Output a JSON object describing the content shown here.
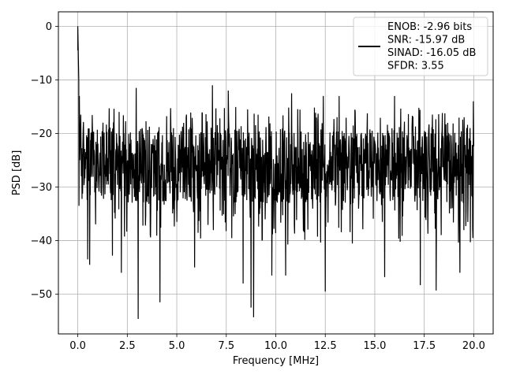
{
  "chart_data": {
    "type": "line",
    "xlabel": "Frequency [MHz]",
    "ylabel": "PSD [dB]",
    "xlim": [
      -0.98,
      20.98
    ],
    "ylim": [
      -57.4,
      2.7
    ],
    "xticks": [
      0.0,
      2.5,
      5.0,
      7.5,
      10.0,
      12.5,
      15.0,
      17.5,
      20.0
    ],
    "xtick_labels": [
      "0.0",
      "2.5",
      "5.0",
      "7.5",
      "10.0",
      "12.5",
      "15.0",
      "17.5",
      "20.0"
    ],
    "yticks": [
      0,
      -10,
      -20,
      -30,
      -40,
      -50
    ],
    "ytick_labels": [
      "0",
      "−10",
      "−20",
      "−30",
      "−40",
      "−50"
    ],
    "grid": true,
    "legend_position": "top-right",
    "legend_lines": [
      "ENOB: -2.96 bits",
      "SNR: -15.97 dB",
      "SINAD: -16.05 dB",
      "SFDR: 3.55"
    ],
    "series": [
      {
        "color": "#000000",
        "x_start": 0.0,
        "x_end": 20.0,
        "peak": {
          "x": 0.0,
          "y": 0.0
        },
        "noise_floor": {
          "band_top": -19,
          "band_bottom": -33,
          "max_excursion": -11.0,
          "min_excursion": -54.6
        },
        "spikes_up": [
          {
            "x": 0.05,
            "y": -10.0
          },
          {
            "x": 0.08,
            "y": -13.0
          },
          {
            "x": 0.15,
            "y": -16.5
          },
          {
            "x": 2.95,
            "y": -11.5
          },
          {
            "x": 6.8,
            "y": -11.0
          },
          {
            "x": 7.6,
            "y": -12.0
          },
          {
            "x": 10.8,
            "y": -12.5
          },
          {
            "x": 12.4,
            "y": -13.0
          },
          {
            "x": 13.2,
            "y": -13.0
          },
          {
            "x": 16.0,
            "y": -13.0
          },
          {
            "x": 19.98,
            "y": -14.0
          }
        ],
        "spikes_down": [
          {
            "x": 0.05,
            "y": -33.5
          },
          {
            "x": 0.5,
            "y": -43.5
          },
          {
            "x": 0.6,
            "y": -44.5
          },
          {
            "x": 1.75,
            "y": -42.8
          },
          {
            "x": 2.2,
            "y": -46.0
          },
          {
            "x": 3.05,
            "y": -54.6
          },
          {
            "x": 4.15,
            "y": -51.5
          },
          {
            "x": 5.9,
            "y": -45.0
          },
          {
            "x": 8.35,
            "y": -48.0
          },
          {
            "x": 8.75,
            "y": -52.5
          },
          {
            "x": 8.88,
            "y": -54.3
          },
          {
            "x": 9.8,
            "y": -46.5
          },
          {
            "x": 10.5,
            "y": -46.5
          },
          {
            "x": 12.5,
            "y": -49.5
          },
          {
            "x": 15.5,
            "y": -46.8
          },
          {
            "x": 17.3,
            "y": -48.3
          },
          {
            "x": 18.1,
            "y": -49.3
          },
          {
            "x": 19.3,
            "y": -46.0
          }
        ]
      }
    ]
  }
}
